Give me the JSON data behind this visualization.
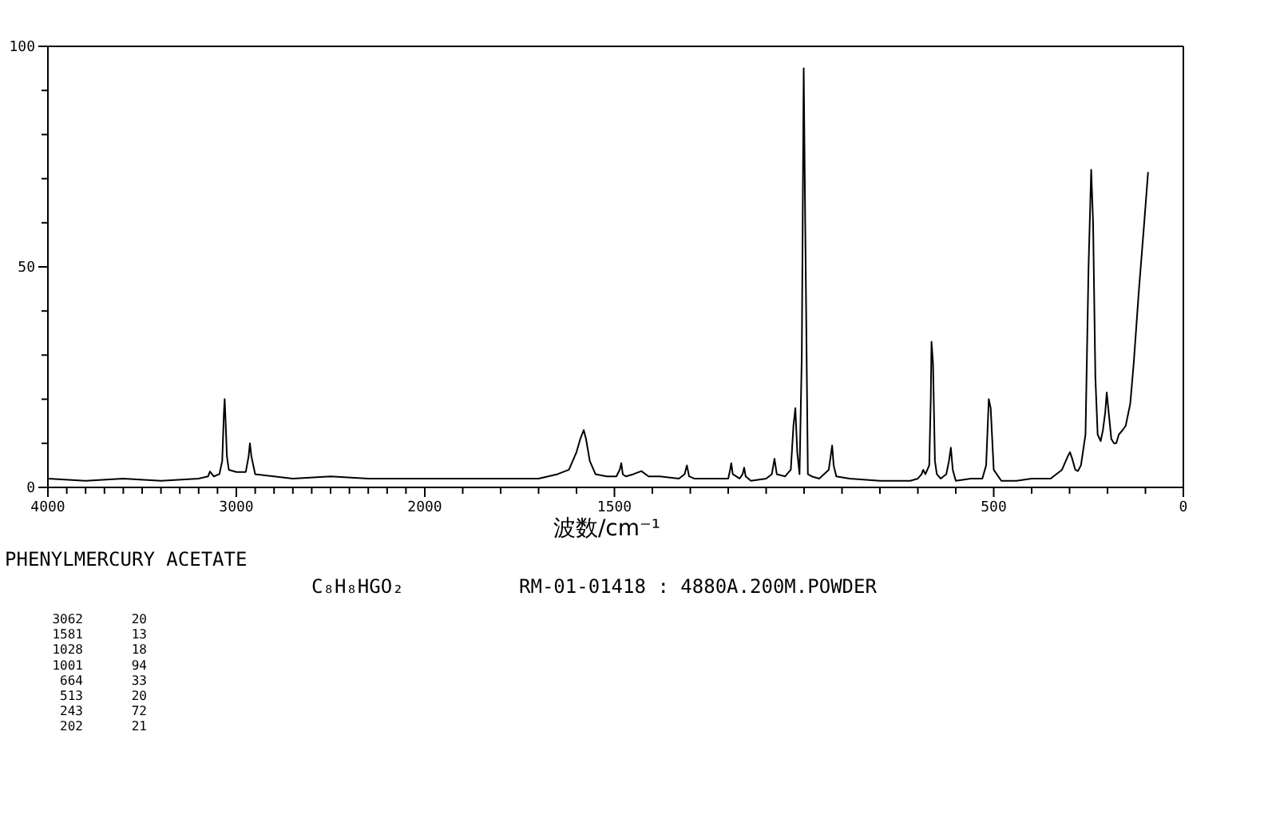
{
  "chart_data": [
    {
      "type": "line",
      "title": "PHENYLMERCURY ACETATE",
      "subtitle": "C₈H₈HGO₂",
      "annotations": [
        "RM-01-01418 : 4880A.200M.POWDER",
        "3062 20",
        "1581 13",
        "1028 18",
        "1001 94",
        "664 33",
        "513 20",
        "243 72",
        "202 21"
      ],
      "xlim": [
        4000,
        2000
      ],
      "xticks": [
        4000,
        {
          "value": 3900,
          "label": null
        },
        {
          "value": 3800,
          "label": null
        },
        {
          "value": 3700,
          "label": null
        },
        {
          "value": 3600,
          "label": null
        },
        {
          "value": 3500,
          "label": null
        },
        {
          "value": 3400,
          "label": null
        },
        {
          "value": 3300,
          "label": null
        },
        {
          "value": 3200,
          "label": null
        },
        {
          "value": 3100,
          "label": null
        },
        3000,
        {
          "value": 2900,
          "label": null
        },
        {
          "value": 2800,
          "label": null
        },
        {
          "value": 2700,
          "label": null
        },
        {
          "value": 2600,
          "label": null
        },
        {
          "value": 2500,
          "label": null
        },
        {
          "value": 2400,
          "label": null
        },
        {
          "value": 2300,
          "label": null
        },
        {
          "value": 2200,
          "label": null
        },
        {
          "value": 2100,
          "label": null
        },
        2000
      ],
      "ylim": [
        0,
        100
      ],
      "yticks": [
        0,
        {
          "value": 10,
          "label": null
        },
        {
          "value": 20,
          "label": null
        },
        {
          "value": 30,
          "label": null
        },
        {
          "value": 40,
          "label": null
        },
        50,
        {
          "value": 60,
          "label": null
        },
        {
          "value": 70,
          "label": null
        },
        {
          "value": 80,
          "label": null
        },
        {
          "value": 90,
          "label": null
        },
        100
      ],
      "series": [
        {
          "color": "#000000",
          "x": [
            4000,
            3800,
            3600,
            3400,
            3200,
            3150,
            3140,
            3120,
            3090,
            3075,
            3066,
            3062,
            3058,
            3050,
            3040,
            3000,
            2950,
            2935,
            2928,
            2920,
            2900,
            2700,
            2500,
            2300,
            2100,
            2000
          ],
          "values": [
            2,
            1.5,
            2,
            1.5,
            2,
            2.5,
            3.6,
            2.5,
            3,
            6,
            17,
            20,
            16,
            7,
            4,
            3.5,
            3.5,
            7,
            10,
            7,
            3,
            2,
            2.5,
            2,
            2,
            2
          ]
        }
      ]
    },
    {
      "type": "line",
      "xlabel": "波数/cm⁻¹",
      "tick_labels": "x",
      "xlim": [
        2000,
        0
      ],
      "xticks": [
        {
          "value": 1900,
          "label": null
        },
        {
          "value": 1800,
          "label": null
        },
        {
          "value": 1700,
          "label": null
        },
        {
          "value": 1600,
          "label": null
        },
        1500,
        {
          "value": 1400,
          "label": null
        },
        {
          "value": 1300,
          "label": null
        },
        {
          "value": 1200,
          "label": null
        },
        {
          "value": 1100,
          "label": null
        },
        {
          "value": 1000,
          "label": null
        },
        {
          "value": 900,
          "label": null
        },
        {
          "value": 800,
          "label": null
        },
        {
          "value": 700,
          "label": null
        },
        {
          "value": 600,
          "label": null
        },
        500,
        {
          "value": 400,
          "label": null
        },
        {
          "value": 300,
          "label": null
        },
        {
          "value": 200,
          "label": null
        },
        {
          "value": 100,
          "label": null
        },
        0
      ],
      "ylim": [
        0,
        100
      ],
      "series": [
        {
          "color": "#000000",
          "x": [
            2000,
            1900,
            1700,
            1650,
            1620,
            1600,
            1590,
            1581,
            1575,
            1565,
            1550,
            1520,
            1495,
            1486,
            1482,
            1478,
            1470,
            1450,
            1429,
            1410,
            1380,
            1330,
            1315,
            1309,
            1303,
            1290,
            1250,
            1200,
            1195,
            1192,
            1188,
            1170,
            1162,
            1158,
            1154,
            1140,
            1100,
            1085,
            1078,
            1072,
            1050,
            1035,
            1028,
            1023,
            1018,
            1012,
            1006,
            1001,
            997,
            990,
            980,
            960,
            935,
            930,
            926,
            922,
            915,
            880,
            800,
            720,
            700,
            690,
            686,
            680,
            670,
            666,
            664,
            660,
            655,
            650,
            640,
            625,
            618,
            613,
            608,
            600,
            560,
            530,
            520,
            513,
            508,
            500,
            480,
            440,
            400,
            350,
            320,
            305,
            299,
            293,
            285,
            278,
            270,
            258,
            250,
            243,
            238,
            232,
            226,
            218,
            212,
            206,
            202,
            198,
            190,
            183,
            177,
            170,
            160,
            152,
            140,
            131,
            117,
            105,
            93
          ],
          "values": [
            2,
            2,
            2,
            3,
            4,
            8,
            11,
            13,
            11,
            6,
            3,
            2.5,
            2.5,
            4,
            5.5,
            3,
            2.5,
            3,
            3.7,
            2.5,
            2.5,
            2,
            3,
            5,
            2.5,
            2,
            2,
            2,
            4,
            5.5,
            3,
            2,
            3,
            4.5,
            2.5,
            1.5,
            2,
            3,
            6.5,
            3,
            2.5,
            4,
            14,
            18,
            8,
            3,
            30,
            95,
            60,
            3,
            2.5,
            2,
            4,
            7,
            9.5,
            5,
            2.5,
            2,
            1.5,
            1.5,
            2,
            3,
            4,
            3,
            5,
            20,
            33,
            28,
            6,
            3,
            2,
            3,
            6,
            9,
            4,
            1.5,
            2,
            2,
            5,
            20,
            18,
            4,
            1.5,
            1.5,
            2,
            2,
            4,
            7,
            8,
            6.5,
            4,
            3.7,
            5,
            12,
            50,
            72,
            60,
            25,
            12,
            10.5,
            13,
            17,
            21.5,
            18,
            11,
            10,
            10,
            12,
            13,
            14,
            19,
            28,
            45,
            58,
            71.5
          ]
        }
      ]
    }
  ]
}
